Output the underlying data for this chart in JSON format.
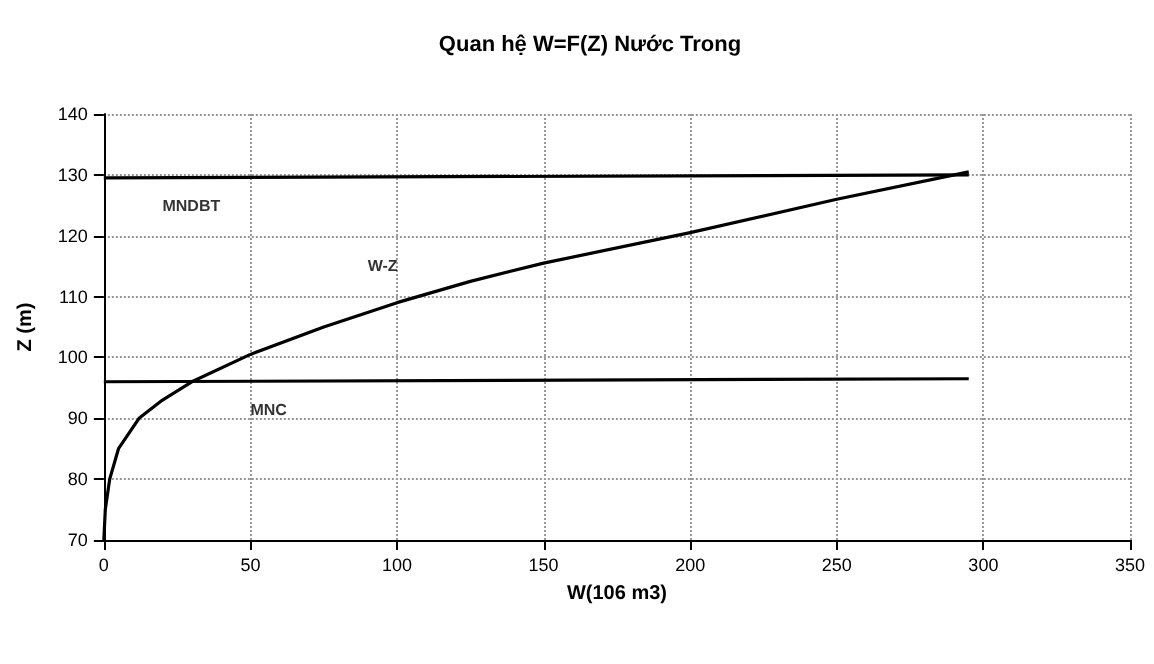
{
  "chart_data": {
    "type": "line",
    "title": "Quan hệ W=F(Z) Nước Trong",
    "xlabel": "W(106 m3)",
    "ylabel": "Z (m)",
    "xlim": [
      0,
      350
    ],
    "xticks": [
      0,
      50,
      100,
      150,
      200,
      250,
      300,
      350
    ],
    "ylim": [
      70,
      140
    ],
    "yticks": [
      70,
      80,
      90,
      100,
      110,
      120,
      130,
      140
    ],
    "grid": true,
    "marker": "none",
    "line_style": "solid",
    "series": [
      {
        "color": "#000000",
        "x": [
          0,
          0.5,
          2,
          5,
          12,
          20,
          30,
          50,
          75,
          100,
          125,
          150,
          200,
          250,
          295
        ],
        "values": [
          70,
          75,
          80,
          85,
          90,
          93,
          96,
          100.5,
          105,
          109,
          112.5,
          115.5,
          120.5,
          126,
          130.5
        ]
      },
      {
        "color": "#000000",
        "x": [
          0,
          295
        ],
        "values": [
          129.5,
          130
        ]
      },
      {
        "color": "#000000",
        "x": [
          0,
          295
        ],
        "values": [
          96,
          96.5
        ]
      }
    ],
    "annotations": [
      {
        "text": "MNDBT",
        "x": 20,
        "y": 129.5
      },
      {
        "text": "W-Z",
        "x": 90,
        "y": 107.4
      },
      {
        "text": "MNC",
        "x": 50,
        "y": 96
      }
    ]
  }
}
